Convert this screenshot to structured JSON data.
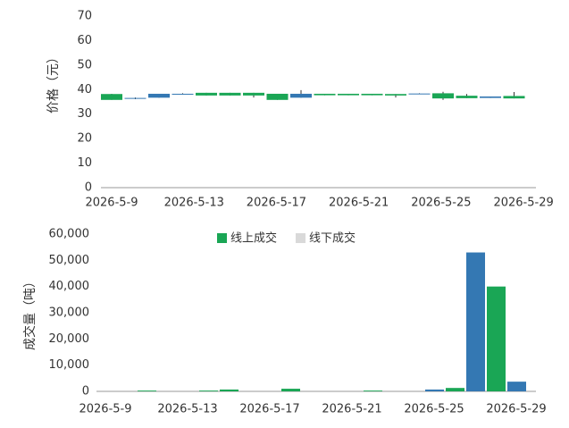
{
  "chart_data": [
    {
      "type": "candlestick",
      "ylabel": "价格（元）",
      "categories": [
        null,
        null,
        null,
        null,
        null,
        null,
        null,
        null,
        null,
        null,
        null,
        null,
        null,
        null,
        null,
        null,
        null,
        null
      ],
      "open": [
        38.2,
        36.4,
        36.7,
        38.1,
        38.7,
        38.7,
        38.7,
        38.3,
        36.7,
        38.3,
        38.3,
        38.3,
        38.2,
        38.2,
        38.5,
        37.5,
        36.6,
        37.4
      ],
      "close": [
        35.8,
        36.6,
        38.3,
        38.3,
        37.6,
        37.6,
        37.6,
        35.8,
        38.3,
        37.7,
        37.7,
        37.7,
        37.6,
        38.4,
        36.4,
        36.5,
        37.2,
        36.4
      ],
      "low": [
        35.8,
        36.1,
        36.7,
        38.0,
        37.6,
        37.6,
        36.8,
        35.8,
        36.7,
        37.7,
        37.7,
        37.7,
        36.8,
        38.1,
        35.8,
        36.5,
        36.6,
        36.4
      ],
      "high": [
        38.3,
        36.8,
        38.3,
        38.5,
        38.7,
        38.7,
        38.7,
        38.3,
        39.8,
        38.3,
        38.3,
        38.3,
        38.2,
        38.5,
        39.1,
        38.2,
        37.2,
        39.0
      ],
      "colors": [
        "#1aa655",
        "#3478b3",
        "#3478b3",
        "#3478b3",
        "#1aa655",
        "#1aa655",
        "#1aa655",
        "#1aa655",
        "#3478b3",
        "#1aa655",
        "#1aa655",
        "#1aa655",
        "#1aa655",
        "#3478b3",
        "#1aa655",
        "#1aa655",
        "#3478b3",
        "#1aa655"
      ],
      "xlim": [
        -0.45,
        17.8
      ],
      "xticks": [
        {
          "value": 0,
          "label": "2026-5-9"
        },
        {
          "value": 3.48,
          "label": "2026-5-13"
        },
        {
          "value": 6.96,
          "label": "2026-5-17"
        },
        {
          "value": 10.44,
          "label": "2026-5-21"
        },
        {
          "value": 13.92,
          "label": "2026-5-25"
        },
        {
          "value": 17.4,
          "label": "2026-5-29"
        }
      ],
      "ylim": [
        0,
        70
      ],
      "yticks": [
        0,
        10,
        20,
        30,
        40,
        50,
        60,
        70
      ]
    },
    {
      "type": "bar",
      "ylabel": "成交量（吨）",
      "categories": [
        "2026-5-9",
        null,
        null,
        null,
        "2026-5-13",
        null,
        null,
        null,
        "2026-5-17",
        null,
        null,
        null,
        "2026-5-21",
        null,
        null,
        null,
        "2026-5-25",
        null,
        null,
        null,
        "2026-5-29"
      ],
      "series": [
        {
          "name": "线上成交",
          "color": "#1aa655",
          "values": [
            null,
            null,
            300,
            null,
            null,
            300,
            700,
            null,
            null,
            1000,
            null,
            null,
            null,
            300,
            null,
            null,
            700,
            1300,
            53000,
            40000,
            3700
          ],
          "colors": [
            null,
            null,
            "#1aa655",
            null,
            null,
            "#1aa655",
            "#1aa655",
            null,
            null,
            "#1aa655",
            null,
            null,
            null,
            "#1aa655",
            null,
            null,
            "#3478b3",
            "#1aa655",
            "#3478b3",
            "#1aa655",
            "#3478b3"
          ]
        },
        {
          "name": "线下成交",
          "color": "#d9d9d9",
          "values": [
            null,
            null,
            null,
            null,
            null,
            null,
            null,
            null,
            null,
            null,
            null,
            null,
            null,
            null,
            null,
            null,
            null,
            null,
            null,
            null,
            null
          ]
        }
      ],
      "ylim": [
        0,
        60000
      ],
      "yticks": [
        0,
        {
          "value": 10000,
          "label": "10,000"
        },
        {
          "value": 20000,
          "label": "20,000"
        },
        {
          "value": 30000,
          "label": "30,000"
        },
        {
          "value": 40000,
          "label": "40,000"
        },
        {
          "value": 50000,
          "label": "50,000"
        },
        {
          "value": 60000,
          "label": "60,000"
        }
      ]
    }
  ]
}
